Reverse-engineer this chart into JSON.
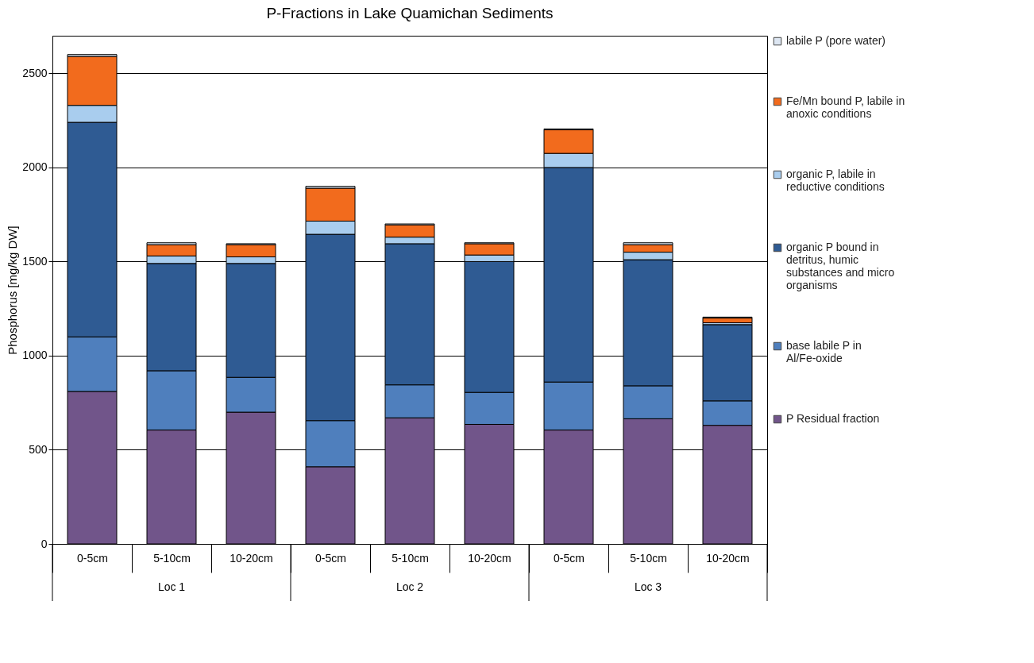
{
  "chart_data": {
    "type": "bar",
    "stacked": true,
    "title": "P-Fractions in Lake Quamichan Sediments",
    "ylabel": "Phosphorus [mg/kg DW]",
    "categories": [
      "0-5cm",
      "5-10cm",
      "10-20cm",
      "0-5cm",
      "5-10cm",
      "10-20cm",
      "0-5cm",
      "5-10cm",
      "10-20cm"
    ],
    "annotations": [
      "Loc 1",
      "Loc 2",
      "Loc 3"
    ],
    "series": [
      {
        "name": "P Residual fraction",
        "color": "#71558a",
        "values": [
          810,
          605,
          700,
          410,
          670,
          635,
          605,
          665,
          630
        ]
      },
      {
        "name": "base labile P in Al/Fe-oxide",
        "color": "#4f7fbd",
        "values": [
          290,
          315,
          185,
          245,
          175,
          170,
          255,
          175,
          130
        ]
      },
      {
        "name": "organic P bound in detritus, humic substances and micro organisms",
        "color": "#2f5b93",
        "values": [
          1140,
          570,
          605,
          990,
          750,
          695,
          1140,
          670,
          405
        ]
      },
      {
        "name": "organic P, labile in reductive conditions",
        "color": "#a9cdee",
        "values": [
          90,
          40,
          35,
          70,
          35,
          35,
          75,
          40,
          10
        ]
      },
      {
        "name": "Fe/Mn bound P, labile in anoxic conditions",
        "color": "#f26b1d",
        "values": [
          260,
          60,
          65,
          175,
          65,
          60,
          125,
          40,
          25
        ]
      },
      {
        "name": "labile P (pore water)",
        "color": "#dde6f2",
        "values": [
          10,
          10,
          5,
          10,
          5,
          5,
          5,
          10,
          5
        ]
      }
    ],
    "ylim": [
      0,
      2700
    ],
    "yticks": [
      0,
      500,
      1000,
      1500,
      2000,
      2500
    ],
    "grid": "y",
    "legend": "right"
  }
}
